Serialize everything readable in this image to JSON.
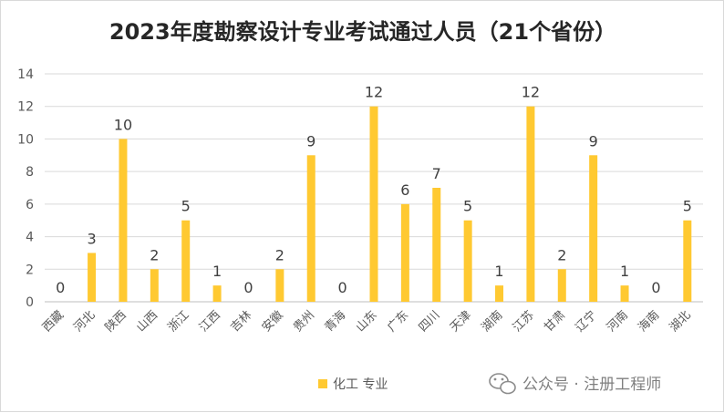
{
  "chart_data": {
    "type": "bar",
    "title": "2023年度勘察设计专业考试通过人员（21个省份）",
    "categories": [
      "西藏",
      "河北",
      "陕西",
      "山西",
      "浙江",
      "江西",
      "吉林",
      "安徽",
      "贵州",
      "青海",
      "山东",
      "广东",
      "四川",
      "天津",
      "湖南",
      "江苏",
      "甘肃",
      "辽宁",
      "河南",
      "海南",
      "湖北"
    ],
    "series": [
      {
        "name": "化工 专业",
        "values": [
          0,
          3,
          10,
          2,
          5,
          1,
          0,
          2,
          9,
          0,
          12,
          6,
          7,
          5,
          1,
          12,
          2,
          9,
          1,
          0,
          5
        ],
        "color": "#FFC931"
      }
    ],
    "ylim": [
      0,
      14
    ],
    "yticks": [
      0,
      2,
      4,
      6,
      8,
      10,
      12,
      14
    ],
    "grid": true,
    "legend_position": "bottom"
  },
  "watermark": {
    "text": "公众号 · 注册工程师",
    "icon": "wechat-icon"
  }
}
